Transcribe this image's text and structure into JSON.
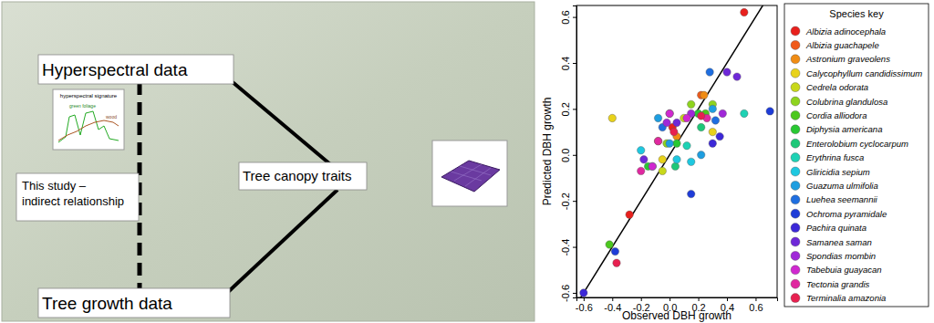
{
  "diagram": {
    "nodes": [
      {
        "label": "Hyperspectral data"
      },
      {
        "label": "Tree canopy traits"
      },
      {
        "label": "Tree growth data"
      }
    ],
    "note": {
      "lines": [
        "This study –",
        "indirect relationship"
      ]
    },
    "inset_texts": [
      "hyperspectral signature",
      "green foliage",
      "wood"
    ]
  },
  "chart_data": {
    "type": "scatter",
    "x_label": "Observed DBH growth",
    "y_label": "Predicted DBH growth",
    "legend_title": "Species key",
    "legend": "right",
    "xlim": [
      -0.65,
      0.75
    ],
    "ylim": [
      -0.62,
      0.65
    ],
    "xticks": [
      -0.6,
      -0.4,
      -0.2,
      {
        "value": 0,
        "label": "0.0"
      },
      0.2,
      0.4,
      0.6
    ],
    "yticks": [
      -0.6,
      -0.4,
      -0.2,
      {
        "value": 0,
        "label": "0.0"
      },
      0.2,
      0.4,
      0.6
    ],
    "series": [
      {
        "name": "Albizia adinocephala",
        "color": "#e8201d",
        "x": [
          0.52,
          -0.28,
          0.02
        ],
        "values": [
          0.62,
          -0.26,
          0.12
        ]
      },
      {
        "name": "Albizia guachapele",
        "color": "#f05a1a",
        "x": [
          0.22,
          -0.08
        ],
        "values": [
          0.26,
          0.06
        ]
      },
      {
        "name": "Astronium graveolens",
        "color": "#f08c14",
        "x": [
          0.05,
          0.24
        ],
        "values": [
          0.08,
          0.26
        ]
      },
      {
        "name": "Calycophyllum candidissimum",
        "color": "#e8d21a",
        "x": [
          -0.4,
          0.3,
          -0.05
        ],
        "values": [
          0.16,
          0.1,
          -0.02
        ]
      },
      {
        "name": "Cedrela odorata",
        "color": "#c8d81a",
        "x": [
          -0.05,
          0.1
        ],
        "values": [
          -0.07,
          0.16
        ]
      },
      {
        "name": "Colubrina glandulosa",
        "color": "#8ed41e",
        "x": [
          0.15,
          -0.02,
          0.3
        ],
        "values": [
          0.22,
          0.05,
          0.22
        ]
      },
      {
        "name": "Cordia alliodora",
        "color": "#4cc81e",
        "x": [
          -0.42,
          0.25,
          0.0
        ],
        "values": [
          -0.39,
          0.18,
          0.18
        ]
      },
      {
        "name": "Diphysia americana",
        "color": "#28c832",
        "x": [
          0.2,
          -0.15,
          0.05
        ],
        "values": [
          0.18,
          -0.05,
          0.05
        ]
      },
      {
        "name": "Enterolobium cyclocarpum",
        "color": "#1ec878",
        "x": [
          0.22,
          0.04
        ],
        "values": [
          0.12,
          -0.05
        ]
      },
      {
        "name": "Erythrina fusca",
        "color": "#1ed2b4",
        "x": [
          0.52,
          0.12,
          -0.12
        ],
        "values": [
          0.18,
          0.04,
          -0.05
        ]
      },
      {
        "name": "Gliricidia sepium",
        "color": "#1ec8e0",
        "x": [
          0.15,
          -0.2,
          0.05
        ],
        "values": [
          -0.03,
          0.02,
          -0.02
        ]
      },
      {
        "name": "Guazuma ulmifolia",
        "color": "#1e9ee0",
        "x": [
          0.22,
          -0.08,
          0.3,
          0.0
        ],
        "values": [
          0.0,
          0.16,
          0.2,
          0.05
        ]
      },
      {
        "name": "Luehea seemannii",
        "color": "#1e6ee0",
        "x": [
          0.28,
          -0.05,
          0.32
        ],
        "values": [
          0.36,
          0.12,
          0.15
        ]
      },
      {
        "name": "Ochroma pyramidale",
        "color": "#1e3cd8",
        "x": [
          0.7,
          -0.38,
          0.15
        ],
        "values": [
          0.19,
          -0.42,
          -0.17
        ]
      },
      {
        "name": "Pachira quinata",
        "color": "#3c28d8",
        "x": [
          -0.6,
          0.3,
          0.35
        ],
        "values": [
          -0.6,
          0.05,
          0.08
        ]
      },
      {
        "name": "Samanea saman",
        "color": "#6e28d8",
        "x": [
          0.4,
          0.47,
          -0.18,
          0.05
        ],
        "values": [
          0.36,
          0.34,
          -0.02,
          0.14
        ]
      },
      {
        "name": "Spondias mombin",
        "color": "#a028d8",
        "x": [
          0.37,
          -0.02,
          0.15
        ],
        "values": [
          0.18,
          0.14,
          0.18
        ]
      },
      {
        "name": "Tabebuia guayacan",
        "color": "#d028d0",
        "x": [
          0.0,
          0.12,
          -0.12
        ],
        "values": [
          0.18,
          0.16,
          -0.05
        ]
      },
      {
        "name": "Tectonia grandis",
        "color": "#e028a0",
        "x": [
          0.26,
          -0.08,
          -0.2
        ],
        "values": [
          0.16,
          0.06,
          -0.07
        ]
      },
      {
        "name": "Terminalia amazonia",
        "color": "#e82050",
        "x": [
          -0.37,
          0.03,
          0.22
        ],
        "values": [
          -0.47,
          0.1,
          0.17
        ]
      }
    ]
  }
}
